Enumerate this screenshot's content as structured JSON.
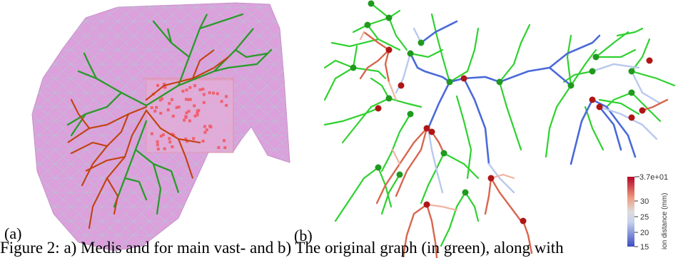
{
  "panels": {
    "a": {
      "label": "(a)"
    },
    "b": {
      "label": "(b)"
    }
  },
  "colorbar": {
    "max_label": "3.7e+01",
    "ticks": [
      "30",
      "25",
      "20",
      "15"
    ],
    "title": "ion distance (mm)",
    "colors": [
      "#3b4cc0",
      "#dddddd",
      "#b40426"
    ]
  },
  "caption": {
    "text": "Figure 2: a) Medis and for main vast- and b) The original graph (in green), along with"
  },
  "colors": {
    "liver_mesh": "#dca0dc",
    "mesh_lines": "#8fd3c8",
    "vessel_green": "#20c020",
    "vessel_red": "#c03010",
    "node_green": "#1f9a1f",
    "node_red": "#b01515"
  }
}
